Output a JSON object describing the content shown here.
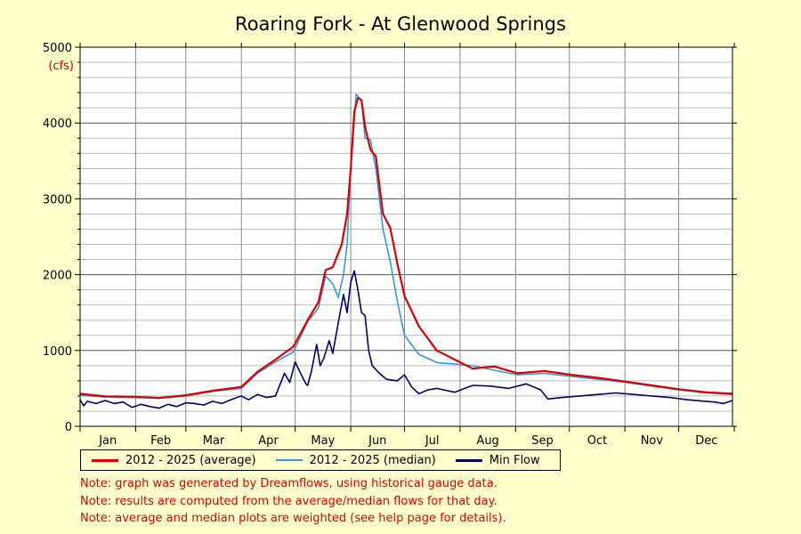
{
  "chart_data": {
    "type": "line",
    "title": "Roaring Fork - At Glenwood Springs",
    "ylabel": "(cfs)",
    "xlabel": "",
    "ylim": [
      0,
      5000
    ],
    "yticks": [
      0,
      1000,
      2000,
      3000,
      4000,
      5000
    ],
    "months": [
      "Jan",
      "Feb",
      "Mar",
      "Apr",
      "May",
      "Jun",
      "Jul",
      "Aug",
      "Sep",
      "Oct",
      "Nov",
      "Dec"
    ],
    "x_unit": "day of year",
    "xlim": [
      1,
      365
    ],
    "grid": true,
    "legend_position": "bottom",
    "series": [
      {
        "name": "2012 - 2025 (average)",
        "color": "#dd0000",
        "x": [
          1,
          15,
          32,
          45,
          60,
          75,
          91,
          100,
          110,
          120,
          128,
          134,
          138,
          142,
          147,
          150,
          152,
          154,
          156,
          158,
          160,
          163,
          166,
          170,
          174,
          178,
          182,
          190,
          200,
          210,
          220,
          232,
          245,
          260,
          275,
          290,
          305,
          320,
          335,
          350,
          365
        ],
        "y": [
          430,
          395,
          390,
          375,
          410,
          470,
          520,
          720,
          880,
          1050,
          1400,
          1640,
          2060,
          2100,
          2400,
          2800,
          3400,
          4150,
          4330,
          4300,
          3950,
          3650,
          3560,
          2800,
          2620,
          2150,
          1720,
          1320,
          1000,
          880,
          760,
          790,
          700,
          730,
          680,
          640,
          590,
          540,
          490,
          450,
          430
        ]
      },
      {
        "name": "2012 - 2025 (median)",
        "color": "#3399dd",
        "x": [
          1,
          15,
          32,
          45,
          60,
          75,
          91,
          100,
          110,
          120,
          128,
          134,
          138,
          142,
          145,
          148,
          150,
          152,
          155,
          158,
          160,
          163,
          166,
          170,
          174,
          178,
          182,
          190,
          200,
          210,
          220,
          232,
          245,
          260,
          275,
          290,
          305,
          320,
          335,
          350,
          365
        ],
        "y": [
          410,
          385,
          380,
          370,
          400,
          460,
          500,
          700,
          850,
          980,
          1380,
          1560,
          1980,
          1880,
          1700,
          2000,
          2400,
          3400,
          4380,
          4300,
          3800,
          3780,
          3400,
          2600,
          2180,
          1650,
          1200,
          950,
          840,
          820,
          800,
          740,
          680,
          700,
          660,
          620,
          580,
          530,
          480,
          440,
          420
        ]
      },
      {
        "name": "Min Flow",
        "color": "#000066",
        "x": [
          1,
          3,
          5,
          10,
          15,
          20,
          25,
          30,
          35,
          40,
          45,
          50,
          55,
          60,
          65,
          70,
          75,
          80,
          85,
          91,
          95,
          100,
          105,
          110,
          115,
          118,
          121,
          124,
          127,
          128,
          130,
          133,
          135,
          137,
          140,
          142,
          145,
          148,
          150,
          152,
          154,
          156,
          158,
          160,
          162,
          164,
          168,
          172,
          178,
          182,
          186,
          190,
          195,
          200,
          210,
          220,
          230,
          240,
          250,
          258,
          262,
          270,
          280,
          290,
          300,
          310,
          320,
          330,
          340,
          350,
          355,
          360,
          365
        ],
        "y": [
          350,
          270,
          330,
          300,
          340,
          300,
          320,
          250,
          290,
          260,
          240,
          290,
          260,
          310,
          300,
          280,
          330,
          300,
          350,
          400,
          350,
          420,
          380,
          400,
          700,
          580,
          850,
          700,
          560,
          540,
          720,
          1080,
          800,
          900,
          1130,
          960,
          1360,
          1740,
          1500,
          1900,
          2050,
          1800,
          1500,
          1460,
          1000,
          800,
          700,
          620,
          600,
          680,
          520,
          430,
          480,
          500,
          450,
          540,
          530,
          500,
          560,
          480,
          360,
          380,
          400,
          420,
          440,
          420,
          400,
          380,
          350,
          330,
          320,
          300,
          340
        ]
      }
    ]
  },
  "notes": [
    "Note: graph was generated by Dreamflows, using historical gauge data.",
    "Note: results are computed from the average/median flows for that day.",
    "Note: average and median plots are weighted (see help page for details)."
  ]
}
